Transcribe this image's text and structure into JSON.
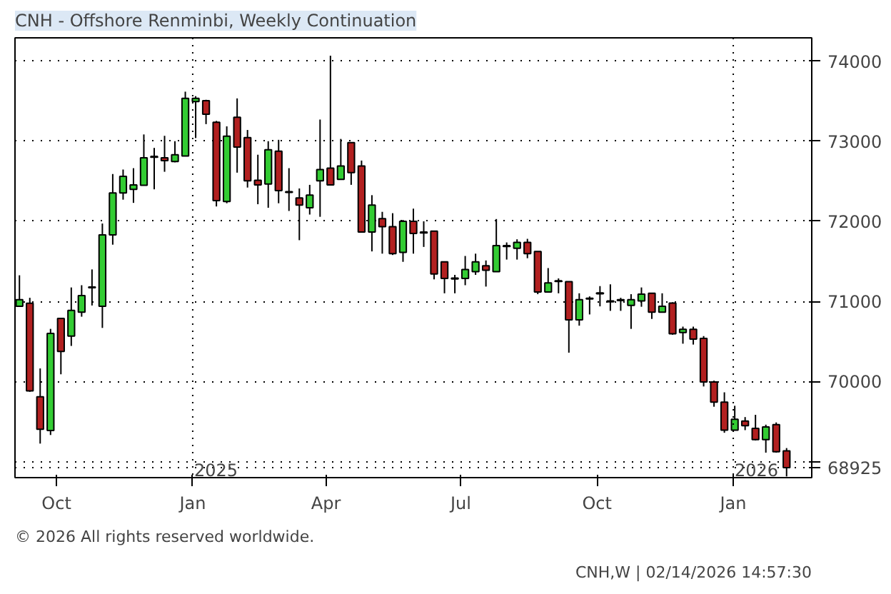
{
  "chart_data": {
    "type": "candlestick",
    "title": "CNH - Offshore Renminbi, Weekly Continuation",
    "x": [
      "2024-09-06",
      "2024-09-13",
      "2024-09-20",
      "2024-09-27",
      "2024-10-04",
      "2024-10-11",
      "2024-10-18",
      "2024-10-25",
      "2024-11-01",
      "2024-11-08",
      "2024-11-15",
      "2024-11-22",
      "2024-11-29",
      "2024-12-06",
      "2024-12-13",
      "2024-12-20",
      "2024-12-27",
      "2025-01-03",
      "2025-01-10",
      "2025-01-17",
      "2025-01-24",
      "2025-01-31",
      "2025-02-07",
      "2025-02-14",
      "2025-02-21",
      "2025-02-28",
      "2025-03-07",
      "2025-03-14",
      "2025-03-21",
      "2025-03-28",
      "2025-04-04",
      "2025-04-11",
      "2025-04-18",
      "2025-04-25",
      "2025-05-02",
      "2025-05-09",
      "2025-05-16",
      "2025-05-23",
      "2025-05-30",
      "2025-06-06",
      "2025-06-13",
      "2025-06-20",
      "2025-06-27",
      "2025-07-04",
      "2025-07-11",
      "2025-07-18",
      "2025-07-25",
      "2025-08-01",
      "2025-08-08",
      "2025-08-15",
      "2025-08-22",
      "2025-08-29",
      "2025-09-05",
      "2025-09-12",
      "2025-09-19",
      "2025-09-26",
      "2025-10-03",
      "2025-10-10",
      "2025-10-17",
      "2025-10-24",
      "2025-10-31",
      "2025-11-07",
      "2025-11-14",
      "2025-11-21",
      "2025-11-28",
      "2025-12-05",
      "2025-12-12",
      "2025-12-19",
      "2025-12-26",
      "2026-01-02",
      "2026-01-09",
      "2026-01-16",
      "2026-01-23",
      "2026-01-30",
      "2026-02-06"
    ],
    "ohlc": [
      [
        70938,
        71326,
        70938,
        71022
      ],
      [
        70977,
        71045,
        69871,
        69882
      ],
      [
        69809,
        70163,
        69225,
        69404
      ],
      [
        69388,
        70657,
        69332,
        70601
      ],
      [
        70787,
        70787,
        70090,
        70376
      ],
      [
        70567,
        71174,
        70444,
        70888
      ],
      [
        70865,
        71202,
        70809,
        71073
      ],
      [
        71170,
        71399,
        70949,
        71180
      ],
      [
        70938,
        71972,
        70669,
        71831
      ],
      [
        71831,
        72590,
        71708,
        72354
      ],
      [
        72354,
        72646,
        72270,
        72562
      ],
      [
        72399,
        72663,
        72230,
        72455
      ],
      [
        72449,
        73084,
        72449,
        72792
      ],
      [
        72810,
        72916,
        72399,
        72800
      ],
      [
        72792,
        73067,
        72618,
        72758
      ],
      [
        72747,
        73000,
        72736,
        72831
      ],
      [
        72815,
        73618,
        72815,
        73534
      ],
      [
        73494,
        73562,
        73039,
        73534
      ],
      [
        73506,
        73517,
        73213,
        73337
      ],
      [
        73236,
        73253,
        72185,
        72258
      ],
      [
        72247,
        73185,
        72225,
        73062
      ],
      [
        73298,
        73534,
        72607,
        72927
      ],
      [
        73045,
        73140,
        72421,
        72506
      ],
      [
        72511,
        72831,
        72213,
        72455
      ],
      [
        72466,
        73000,
        72169,
        72893
      ],
      [
        72876,
        73017,
        72225,
        72382
      ],
      [
        72370,
        72663,
        72129,
        72360
      ],
      [
        72292,
        72410,
        71764,
        72202
      ],
      [
        72169,
        72455,
        72084,
        72326
      ],
      [
        72506,
        73270,
        72056,
        72646
      ],
      [
        72663,
        74067,
        72455,
        72455
      ],
      [
        72523,
        73028,
        72523,
        72691
      ],
      [
        72983,
        72983,
        72455,
        72607
      ],
      [
        72691,
        72758,
        71865,
        71865
      ],
      [
        71865,
        72326,
        71624,
        72202
      ],
      [
        72034,
        72118,
        71596,
        71933
      ],
      [
        71933,
        72101,
        71579,
        71596
      ],
      [
        71612,
        72017,
        71494,
        72000
      ],
      [
        72000,
        72157,
        71596,
        71848
      ],
      [
        71855,
        72000,
        71680,
        71865
      ],
      [
        71876,
        71876,
        71275,
        71343
      ],
      [
        71494,
        71494,
        71101,
        71287
      ],
      [
        71280,
        71331,
        71101,
        71292
      ],
      [
        71287,
        71567,
        71202,
        71399
      ],
      [
        71371,
        71596,
        71331,
        71494
      ],
      [
        71444,
        71511,
        71185,
        71388
      ],
      [
        71371,
        72028,
        71371,
        71697
      ],
      [
        71685,
        71736,
        71522,
        71697
      ],
      [
        71663,
        71775,
        71522,
        71736
      ],
      [
        71736,
        71781,
        71539,
        71596
      ],
      [
        71624,
        71624,
        71090,
        71118
      ],
      [
        71118,
        71416,
        71118,
        71230
      ],
      [
        71258,
        71287,
        71101,
        71248
      ],
      [
        71247,
        71247,
        70360,
        70770
      ],
      [
        70770,
        71101,
        70697,
        71022
      ],
      [
        71040,
        71062,
        70837,
        71030
      ],
      [
        71095,
        71191,
        70938,
        71107
      ],
      [
        71005,
        71213,
        70882,
        70995
      ],
      [
        71011,
        71045,
        70882,
        71022
      ],
      [
        70949,
        71090,
        70657,
        71022
      ],
      [
        71006,
        71174,
        70933,
        71090
      ],
      [
        71101,
        71101,
        70781,
        70865
      ],
      [
        70865,
        71101,
        70865,
        70938
      ],
      [
        70978,
        70989,
        70584,
        70596
      ],
      [
        70612,
        70685,
        70472,
        70652
      ],
      [
        70652,
        70685,
        70461,
        70528
      ],
      [
        70539,
        70567,
        69938,
        69994
      ],
      [
        69994,
        70011,
        69685,
        69742
      ],
      [
        69742,
        69865,
        69360,
        69393
      ],
      [
        69393,
        69697,
        69393,
        69528
      ],
      [
        69506,
        69556,
        69393,
        69449
      ],
      [
        69416,
        69584,
        69264,
        69275
      ],
      [
        69275,
        69461,
        69112,
        69433
      ],
      [
        69461,
        69489,
        69112,
        69124
      ],
      [
        69135,
        69169,
        68815,
        68925
      ]
    ],
    "colors": [
      "#33cc33",
      "#b22020",
      "#b22020",
      "#33cc33",
      "#b22020",
      "#33cc33",
      "#33cc33",
      "#33cc33",
      "#33cc33",
      "#33cc33",
      "#33cc33",
      "#33cc33",
      "#33cc33",
      "#b22020",
      "#b22020",
      "#33cc33",
      "#33cc33",
      "#33cc33",
      "#b22020",
      "#b22020",
      "#33cc33",
      "#b22020",
      "#b22020",
      "#b22020",
      "#33cc33",
      "#b22020",
      "#b22020",
      "#b22020",
      "#33cc33",
      "#33cc33",
      "#b22020",
      "#33cc33",
      "#b22020",
      "#b22020",
      "#33cc33",
      "#b22020",
      "#b22020",
      "#33cc33",
      "#b22020",
      "#33cc33",
      "#b22020",
      "#b22020",
      "#33cc33",
      "#33cc33",
      "#33cc33",
      "#b22020",
      "#33cc33",
      "#33cc33",
      "#33cc33",
      "#b22020",
      "#b22020",
      "#33cc33",
      "#b22020",
      "#b22020",
      "#33cc33",
      "#b22020",
      "#33cc33",
      "#b22020",
      "#33cc33",
      "#33cc33",
      "#33cc33",
      "#b22020",
      "#33cc33",
      "#b22020",
      "#33cc33",
      "#b22020",
      "#b22020",
      "#b22020",
      "#b22020",
      "#33cc33",
      "#b22020",
      "#b22020",
      "#33cc33",
      "#b22020",
      "#b22020"
    ],
    "xlim": [
      "2024-09-03",
      "2026-02-23"
    ],
    "xticks": [
      {
        "value": "2024-10-01",
        "label": "Oct"
      },
      {
        "value": "2025-01-01",
        "label": "Jan"
      },
      {
        "value": "2025-04-01",
        "label": "Apr"
      },
      {
        "value": "2025-07-01",
        "label": "Jul"
      },
      {
        "value": "2025-10-01",
        "label": "Oct"
      },
      {
        "value": "2026-01-01",
        "label": "Jan"
      }
    ],
    "ylim": [
      68800,
      74290
    ],
    "yticks": [
      {
        "value": 68925,
        "label": "68925"
      },
      {
        "value": 69000,
        "label": null
      },
      70000,
      71000,
      72000,
      73000,
      74000
    ],
    "grid": "y",
    "ref_lines": [
      {
        "axis": "x",
        "value": "2025-01-01",
        "label": "2025",
        "line_style": "dotted",
        "color": "#000000"
      },
      {
        "axis": "x",
        "value": "2026-01-01",
        "label": "2026",
        "line_style": "dotted",
        "color": "#000000"
      }
    ],
    "annotations": [
      "© 2026 All rights reserved worldwide.",
      "CNH,W | 02/14/2026 14:57:30"
    ]
  }
}
